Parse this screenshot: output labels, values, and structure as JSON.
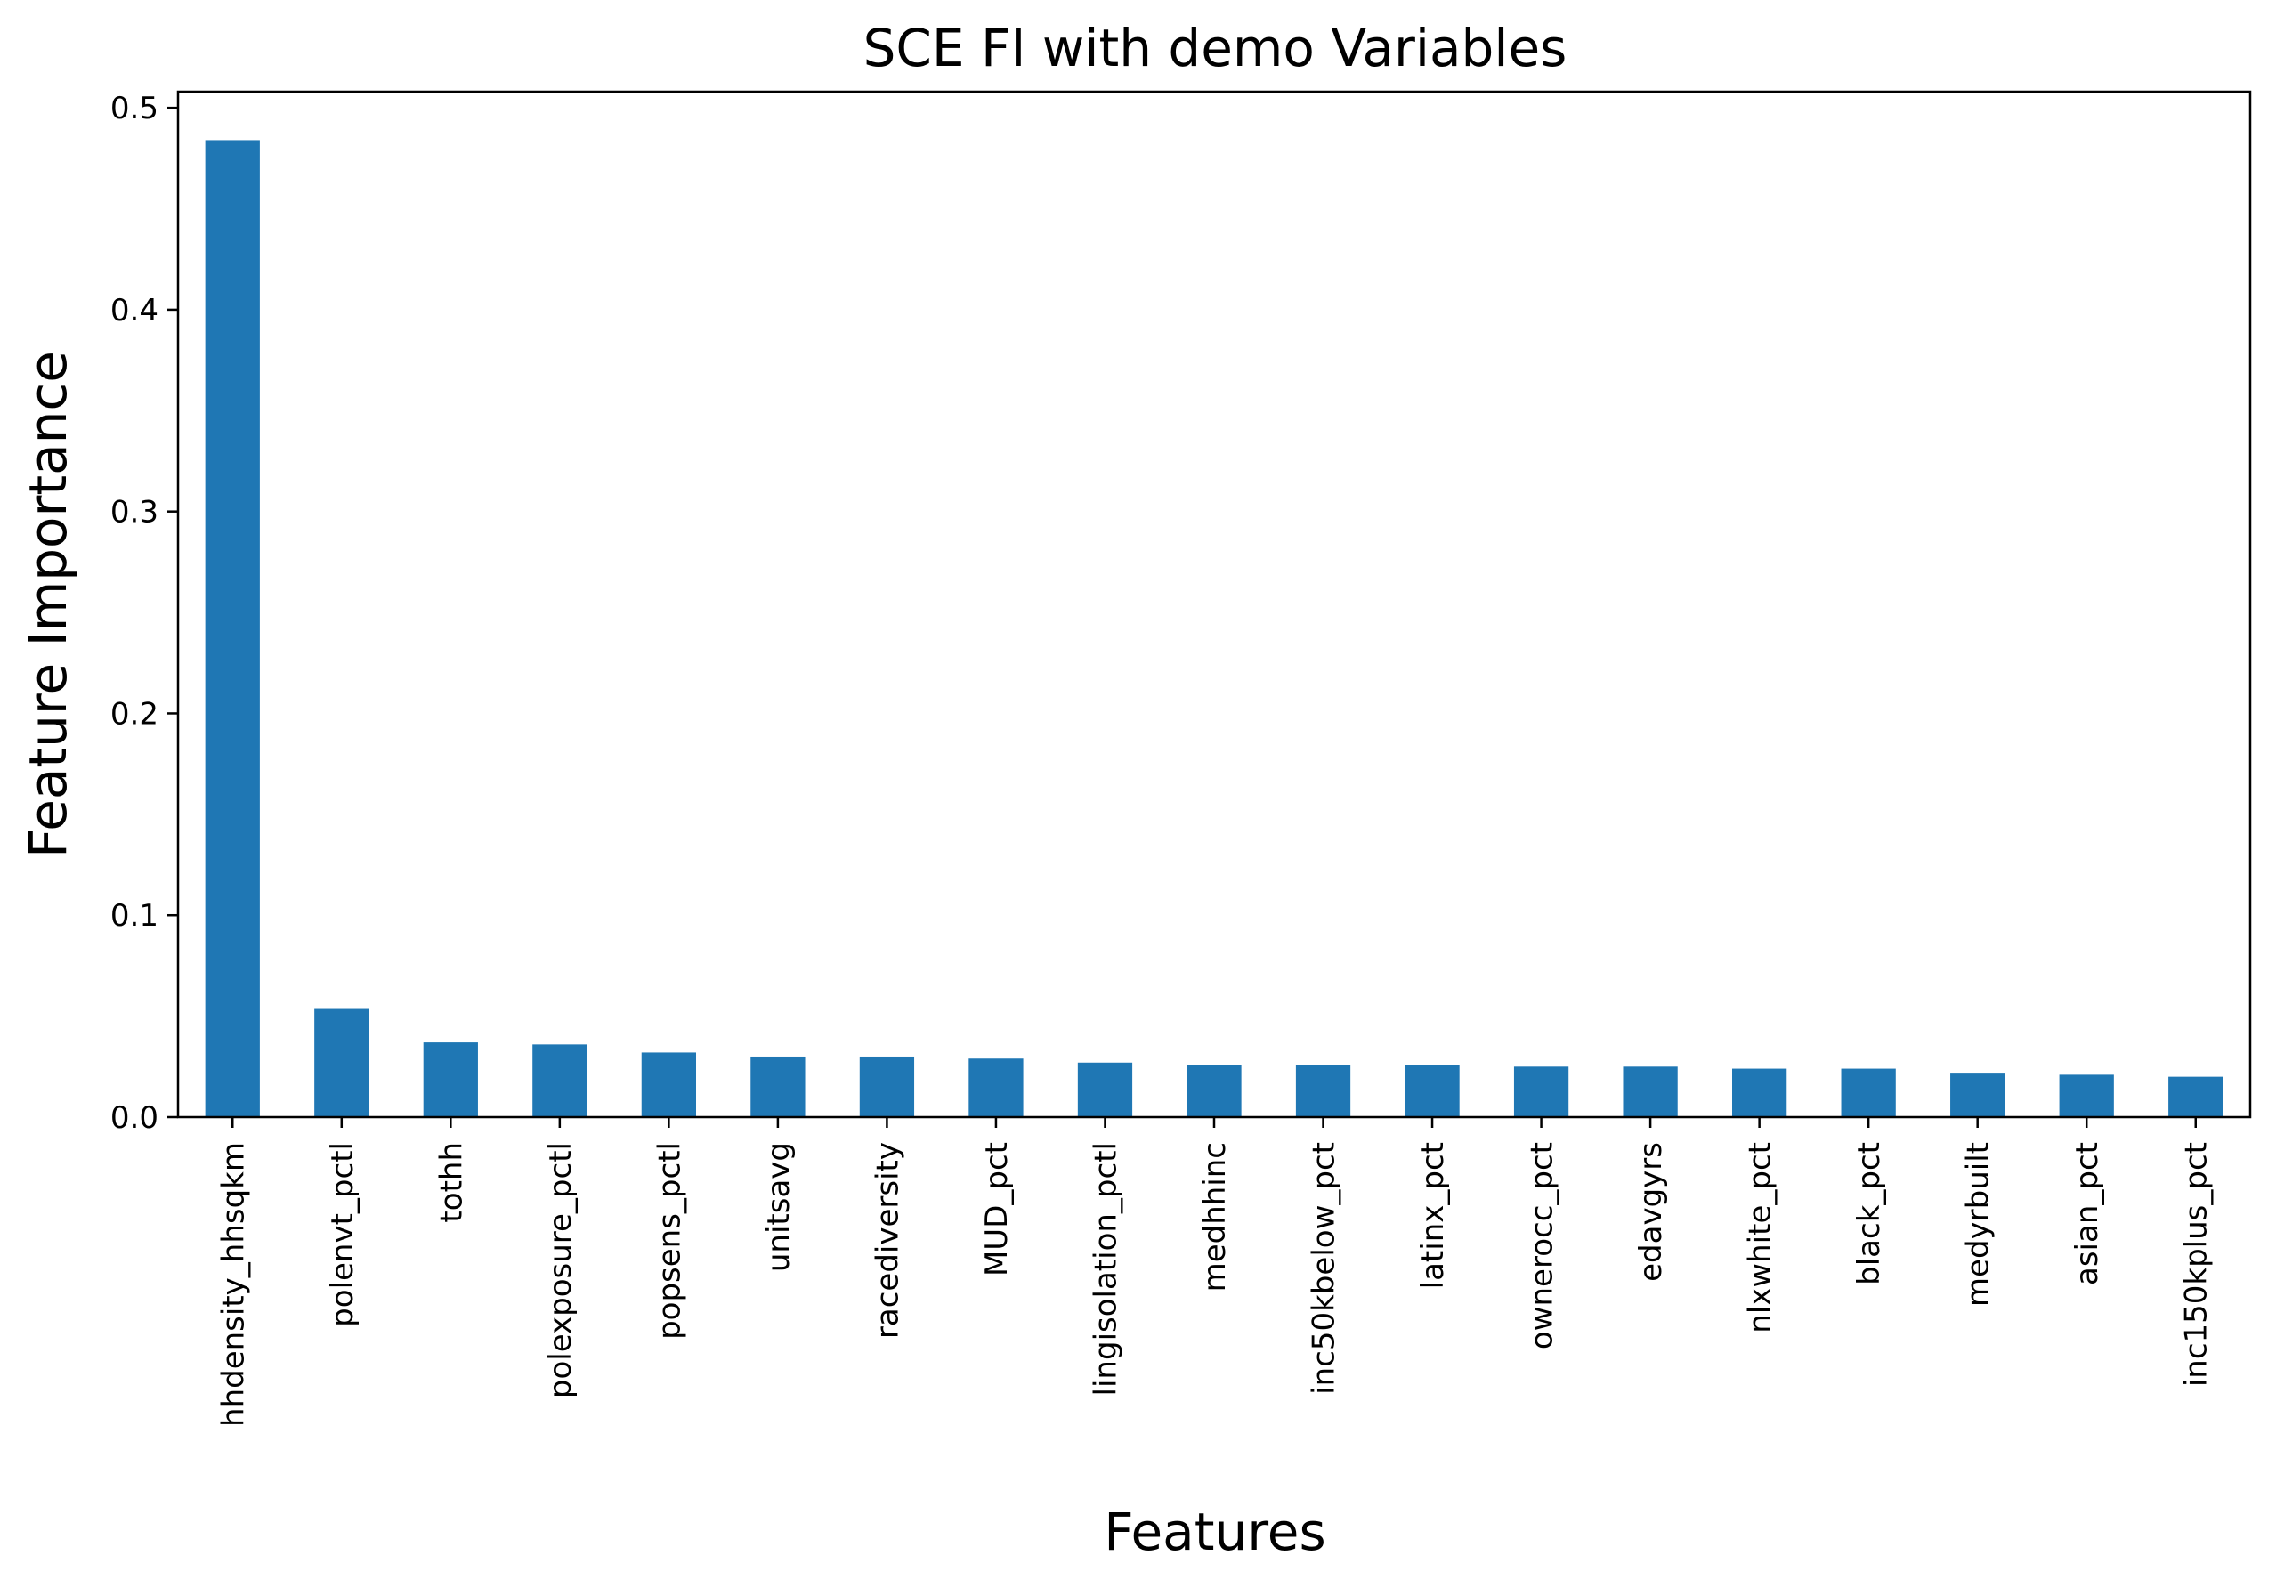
{
  "chart_data": {
    "type": "bar",
    "title": "SCE FI with demo Variables",
    "xlabel": "Features",
    "ylabel": "Feature Importance",
    "ylim": [
      0,
      0.508
    ],
    "yticks": [
      0.0,
      0.1,
      0.2,
      0.3,
      0.4,
      0.5
    ],
    "ytick_labels": [
      "0.0",
      "0.1",
      "0.2",
      "0.3",
      "0.4",
      "0.5"
    ],
    "grid": false,
    "bar_color": "#1f77b4",
    "categories": [
      "hhdensity_hhsqkm",
      "polenvt_pctl",
      "tothh",
      "polexposure_pctl",
      "popsens_pctl",
      "unitsavg",
      "racediversity",
      "MUD_pct",
      "lingisolation_pctl",
      "medhhinc",
      "inc50kbelow_pct",
      "latinx_pct",
      "ownerocc_pct",
      "edavgyrs",
      "nlxwhite_pct",
      "black_pct",
      "medyrbuilt",
      "asian_pct",
      "inc150kplus_pct"
    ],
    "values": [
      0.484,
      0.054,
      0.037,
      0.036,
      0.032,
      0.03,
      0.03,
      0.029,
      0.027,
      0.026,
      0.026,
      0.026,
      0.025,
      0.025,
      0.024,
      0.024,
      0.022,
      0.021,
      0.02
    ]
  }
}
